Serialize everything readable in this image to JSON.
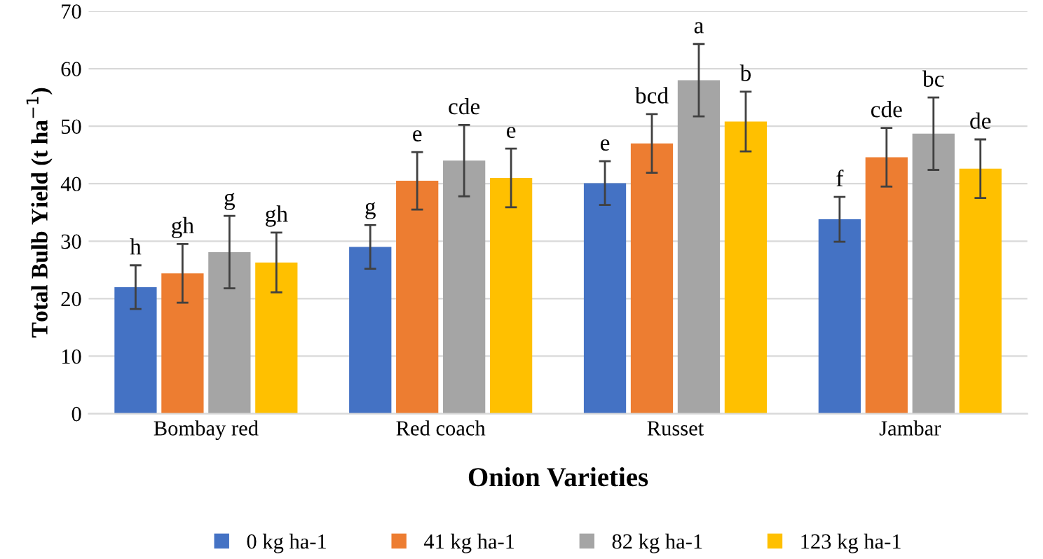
{
  "chart_data": {
    "type": "bar",
    "xlabel": "Onion Varieties",
    "ylabel": "Total Bulb Yield (t ha$^{−1}$)",
    "categories": [
      "Bombay red",
      "Red coach",
      "Russet",
      "Jambar"
    ],
    "series": [
      {
        "name": "0 kg ha-1",
        "color": "#4472c4",
        "values": [
          22.0,
          29.0,
          40.1,
          33.8
        ],
        "errors": [
          3.8,
          3.8,
          3.8,
          3.9
        ],
        "value_labels": [
          "h",
          "g",
          "e",
          "f"
        ]
      },
      {
        "name": "41 kg ha-1",
        "color": "#ed7d31",
        "values": [
          24.4,
          40.5,
          47.0,
          44.6
        ],
        "errors": [
          5.1,
          5.0,
          5.1,
          5.1
        ],
        "value_labels": [
          "gh",
          "e",
          "bcd",
          "cde"
        ]
      },
      {
        "name": "82 kg ha-1",
        "color": "#a5a5a5",
        "values": [
          28.1,
          44.0,
          58.0,
          48.7
        ],
        "errors": [
          6.3,
          6.2,
          6.3,
          6.3
        ],
        "value_labels": [
          "g",
          "cde",
          "a",
          "bc"
        ]
      },
      {
        "name": "123 kg ha-1",
        "color": "#ffc000",
        "values": [
          26.3,
          41.0,
          50.8,
          42.6
        ],
        "errors": [
          5.2,
          5.1,
          5.2,
          5.1
        ],
        "value_labels": [
          "gh",
          "e",
          "b",
          "de"
        ]
      }
    ],
    "ylim": [
      0,
      70
    ],
    "yticks": [
      0,
      10,
      20,
      30,
      40,
      50,
      60,
      70
    ],
    "grid": "y",
    "legend": "bottom"
  }
}
